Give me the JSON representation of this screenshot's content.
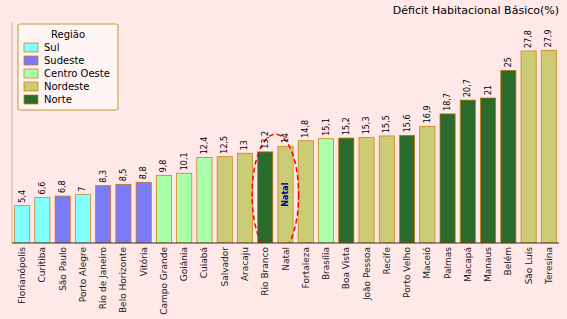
{
  "chart_data": {
    "type": "bar",
    "title": "Déficit Habitacional Básico(%)",
    "categories": [
      "Florianópolis",
      "Curitiba",
      "São Paulo",
      "Porto Alegre",
      "Rio de Janeiro",
      "Belo Horizonte",
      "Vitória",
      "Campo Grande",
      "Goiânia",
      "Cuiabá",
      "Salvador",
      "Aracaju",
      "Rio Branco",
      "Natal",
      "Fortaleza",
      "Brasília",
      "Boa Vista",
      "João Pessoa",
      "Recife",
      "Porto Velho",
      "Maceió",
      "Palmas",
      "Macapá",
      "Manaus",
      "Belém",
      "São Luís",
      "Teresina"
    ],
    "values": [
      5.4,
      6.6,
      6.8,
      7.0,
      8.3,
      8.5,
      8.8,
      9.8,
      10.1,
      12.4,
      12.5,
      13.0,
      13.2,
      14.0,
      14.8,
      15.1,
      15.2,
      15.3,
      15.5,
      15.6,
      16.9,
      18.7,
      20.7,
      21.0,
      25.0,
      27.8,
      27.9
    ],
    "value_labels": [
      "5,4",
      "6,6",
      "6,8",
      "7",
      "8,3",
      "8,5",
      "8,8",
      "9,8",
      "10,1",
      "12,4",
      "12,5",
      "13",
      "13,2",
      "14",
      "14,8",
      "15,1",
      "15,2",
      "15,3",
      "15,5",
      "15,6",
      "16,9",
      "18,7",
      "20,7",
      "21",
      "25",
      "27,8",
      "27,9"
    ],
    "colors": [
      "#7FFFFF",
      "#7FFFFF",
      "#7B7BF5",
      "#7FFFFF",
      "#7B7BF5",
      "#7B7BF5",
      "#7B7BF5",
      "#AAFFAA",
      "#AAFFAA",
      "#AAFFAA",
      "#CCCC77",
      "#CCCC77",
      "#2D6B2D",
      "#CCCC77",
      "#CCCC77",
      "#AAFFAA",
      "#2D6B2D",
      "#CCCC77",
      "#CCCC77",
      "#2D6B2D",
      "#CCCC77",
      "#2D6B2D",
      "#2D6B2D",
      "#2D6B2D",
      "#2D6B2D",
      "#CCCC77",
      "#CCCC77"
    ],
    "ylim": [
      0,
      32
    ],
    "data_labels": true,
    "tick_labels": "x",
    "grid": false,
    "legend": "upper left",
    "legend_title": "Região",
    "legend_entries": [
      {
        "name": "Sul",
        "color": "#7FFFFF"
      },
      {
        "name": "Sudeste",
        "color": "#7B7BF5"
      },
      {
        "name": "Centro Oeste",
        "color": "#AAFFAA"
      },
      {
        "name": "Nordeste",
        "color": "#CCCC77"
      },
      {
        "name": "Norte",
        "color": "#2D6B2D"
      }
    ],
    "annotations": [
      {
        "text": "Natal",
        "highlight": [
          "Rio Branco",
          "Natal"
        ]
      }
    ]
  }
}
